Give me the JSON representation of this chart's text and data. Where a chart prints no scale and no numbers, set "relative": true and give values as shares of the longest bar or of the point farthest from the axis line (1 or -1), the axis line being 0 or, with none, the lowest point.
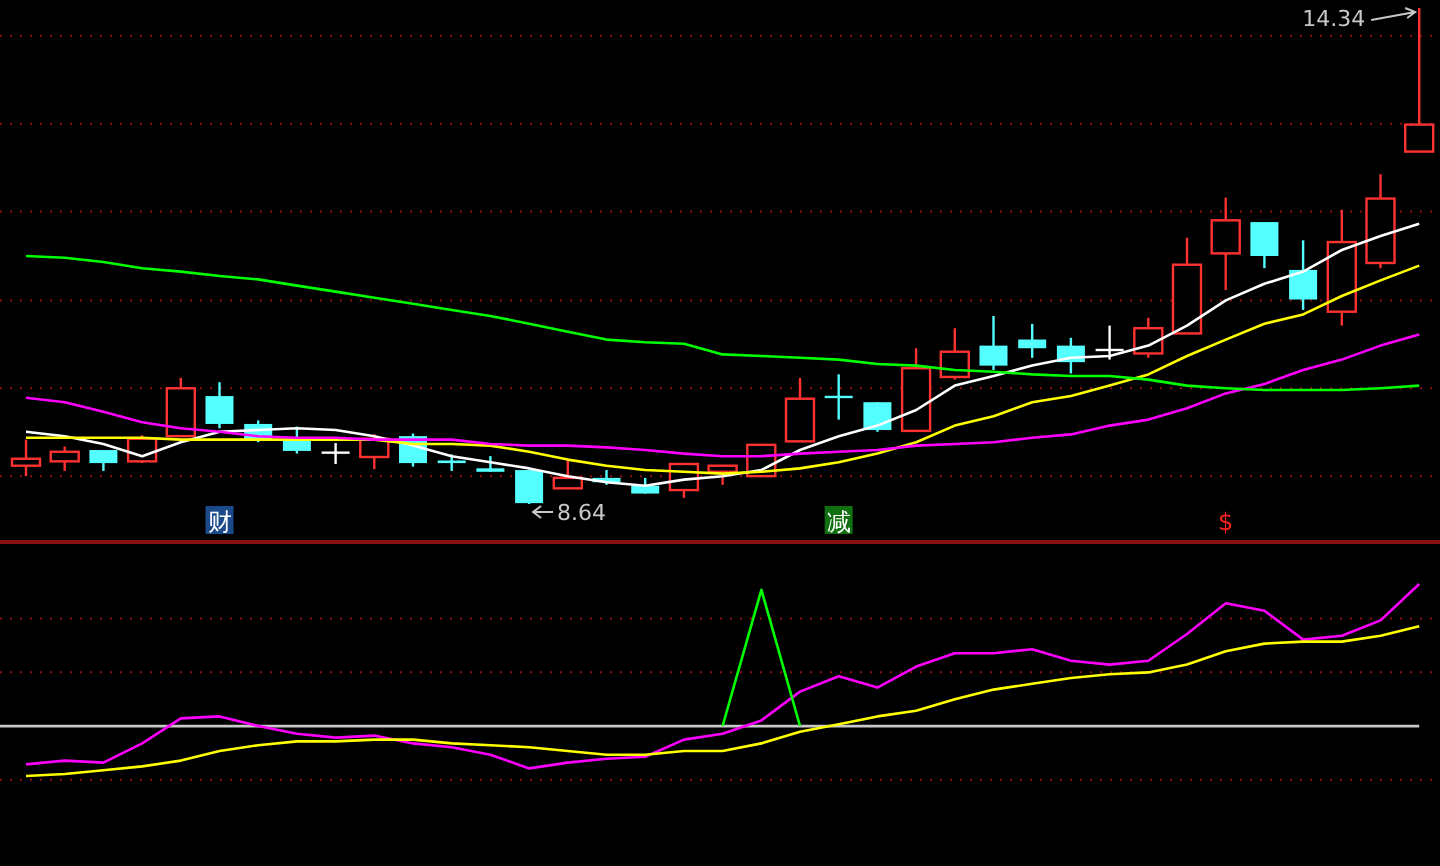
{
  "chart_data": [
    {
      "type": "candlestick",
      "ref_lines": [
        {
          "axis": "y",
          "value": 14.02,
          "color": "#8b1010",
          "line_style": "dotted"
        },
        {
          "axis": "y",
          "value": 13.01,
          "color": "#8b1010",
          "line_style": "dotted"
        },
        {
          "axis": "y",
          "value": 12.0,
          "color": "#8b1010",
          "line_style": "dotted"
        },
        {
          "axis": "y",
          "value": 10.98,
          "color": "#8b1010",
          "line_style": "dotted"
        },
        {
          "axis": "y",
          "value": 9.97,
          "color": "#8b1010",
          "line_style": "dotted"
        },
        {
          "axis": "y",
          "value": 8.96,
          "color": "#8b1010",
          "line_style": "dotted"
        }
      ],
      "categories": [
        null,
        null,
        null,
        null,
        null,
        null,
        null,
        null,
        null,
        null,
        null,
        null,
        null,
        null,
        null,
        null,
        null,
        null,
        null,
        null,
        null,
        null,
        null,
        null,
        null,
        null,
        null,
        null,
        null,
        null,
        null,
        null,
        null,
        null,
        null,
        null,
        null
      ],
      "ohlc": [
        [
          9.08,
          9.38,
          8.96,
          9.16
        ],
        [
          9.13,
          9.3,
          9.02,
          9.24
        ],
        [
          9.26,
          9.26,
          9.02,
          9.11
        ],
        [
          9.13,
          9.43,
          9.11,
          9.39
        ],
        [
          9.42,
          10.09,
          9.42,
          9.97
        ],
        [
          9.88,
          10.04,
          9.51,
          9.56
        ],
        [
          9.56,
          9.6,
          9.35,
          9.38
        ],
        [
          9.39,
          9.53,
          9.22,
          9.25
        ],
        [
          9.23,
          9.34,
          9.1,
          9.23
        ],
        [
          9.18,
          9.44,
          9.04,
          9.39
        ],
        [
          9.42,
          9.45,
          9.07,
          9.11
        ],
        [
          9.14,
          9.21,
          9.02,
          9.11
        ],
        [
          9.05,
          9.19,
          9.01,
          9.01
        ],
        [
          9.03,
          9.03,
          8.64,
          8.65
        ],
        [
          8.82,
          9.16,
          8.82,
          8.94
        ],
        [
          8.94,
          9.03,
          8.86,
          8.89
        ],
        [
          8.85,
          8.94,
          8.76,
          8.76
        ],
        [
          8.8,
          9.1,
          8.71,
          9.1
        ],
        [
          9.01,
          9.08,
          8.86,
          9.08
        ],
        [
          8.96,
          9.32,
          8.96,
          9.32
        ],
        [
          9.36,
          10.09,
          9.36,
          9.85
        ],
        [
          9.87,
          10.13,
          9.61,
          9.85
        ],
        [
          9.81,
          9.81,
          9.47,
          9.49
        ],
        [
          9.48,
          10.43,
          9.48,
          10.2
        ],
        [
          10.1,
          10.66,
          10.07,
          10.39
        ],
        [
          10.46,
          10.8,
          10.18,
          10.23
        ],
        [
          10.53,
          10.71,
          10.32,
          10.43
        ],
        [
          10.46,
          10.55,
          10.14,
          10.27
        ],
        [
          10.41,
          10.69,
          10.3,
          10.41
        ],
        [
          10.37,
          10.78,
          10.32,
          10.66
        ],
        [
          10.6,
          11.7,
          10.6,
          11.39
        ],
        [
          11.52,
          12.16,
          11.1,
          11.9
        ],
        [
          11.88,
          11.88,
          11.35,
          11.49
        ],
        [
          11.33,
          11.67,
          10.87,
          10.99
        ],
        [
          10.85,
          12.02,
          10.69,
          11.65
        ],
        [
          11.41,
          12.43,
          11.35,
          12.15
        ],
        [
          12.69,
          14.34,
          12.69,
          13.0
        ]
      ],
      "series": [
        {
          "type": "line",
          "color": "#ffffff",
          "values": [
            9.47,
            9.42,
            9.33,
            9.19,
            9.35,
            9.47,
            9.49,
            9.51,
            9.49,
            9.42,
            9.31,
            9.19,
            9.12,
            9.05,
            8.96,
            8.89,
            8.85,
            8.92,
            8.96,
            9.03,
            9.26,
            9.42,
            9.54,
            9.72,
            10.0,
            10.11,
            10.23,
            10.32,
            10.34,
            10.46,
            10.69,
            10.98,
            11.17,
            11.31,
            11.56,
            11.72,
            11.86
          ]
        },
        {
          "type": "line",
          "color": "#ffff00",
          "values": [
            9.4,
            9.4,
            9.4,
            9.4,
            9.38,
            9.38,
            9.38,
            9.38,
            9.38,
            9.38,
            9.33,
            9.33,
            9.31,
            9.24,
            9.15,
            9.08,
            9.03,
            9.01,
            8.99,
            9.01,
            9.05,
            9.12,
            9.22,
            9.35,
            9.54,
            9.65,
            9.81,
            9.88,
            10.0,
            10.13,
            10.34,
            10.53,
            10.71,
            10.82,
            11.03,
            11.21,
            11.38
          ]
        },
        {
          "type": "line",
          "color": "#ff00ff",
          "values": [
            9.86,
            9.81,
            9.7,
            9.58,
            9.51,
            9.47,
            9.42,
            9.4,
            9.4,
            9.38,
            9.38,
            9.38,
            9.33,
            9.31,
            9.31,
            9.29,
            9.26,
            9.22,
            9.19,
            9.19,
            9.22,
            9.24,
            9.26,
            9.31,
            9.33,
            9.35,
            9.4,
            9.44,
            9.54,
            9.61,
            9.74,
            9.91,
            10.02,
            10.18,
            10.3,
            10.46,
            10.59
          ]
        },
        {
          "type": "line",
          "color": "#00ff00",
          "values": [
            11.49,
            11.47,
            11.42,
            11.35,
            11.31,
            11.26,
            11.22,
            11.15,
            11.08,
            11.01,
            10.94,
            10.87,
            10.8,
            10.71,
            10.62,
            10.53,
            10.5,
            10.48,
            10.36,
            10.34,
            10.32,
            10.3,
            10.25,
            10.23,
            10.18,
            10.16,
            10.13,
            10.11,
            10.11,
            10.07,
            10.0,
            9.97,
            9.95,
            9.95,
            9.95,
            9.97,
            10.0
          ]
        }
      ],
      "annotations": [
        "14.34",
        "8.64",
        "财",
        "减",
        "$"
      ]
    },
    {
      "type": "line",
      "relative": true,
      "categories": [
        null,
        null,
        null,
        null,
        null,
        null,
        null,
        null,
        null,
        null,
        null,
        null,
        null,
        null,
        null,
        null,
        null,
        null,
        null,
        null,
        null,
        null,
        null,
        null,
        null,
        null,
        null,
        null,
        null,
        null,
        null,
        null,
        null,
        null,
        null,
        null,
        null
      ],
      "series": [
        {
          "color": "#ff00ff",
          "values": [
            0.06,
            0.08,
            0.07,
            0.17,
            0.3,
            0.31,
            0.26,
            0.22,
            0.2,
            0.21,
            0.17,
            0.15,
            0.11,
            0.04,
            0.07,
            0.09,
            0.1,
            0.19,
            0.22,
            0.29,
            0.44,
            0.52,
            0.46,
            0.57,
            0.64,
            0.64,
            0.66,
            0.6,
            0.58,
            0.6,
            0.74,
            0.9,
            0.86,
            0.71,
            0.73,
            0.81,
            1
          ]
        },
        {
          "color": "#ffff00",
          "values": [
            0,
            0.01,
            0.03,
            0.05,
            0.08,
            0.13,
            0.16,
            0.18,
            0.18,
            0.19,
            0.19,
            0.17,
            0.16,
            0.15,
            0.13,
            0.11,
            0.11,
            0.13,
            0.13,
            0.17,
            0.23,
            0.27,
            0.31,
            0.34,
            0.4,
            0.45,
            0.48,
            0.51,
            0.53,
            0.54,
            0.58,
            0.65,
            0.69,
            0.7,
            0.7,
            0.73,
            0.78
          ]
        },
        {
          "color": "#00ff00",
          "values": [
            null,
            null,
            null,
            null,
            null,
            null,
            null,
            null,
            null,
            null,
            null,
            null,
            null,
            null,
            null,
            null,
            null,
            null,
            0.26,
            0.97,
            0.26,
            null,
            null,
            null,
            null,
            null,
            null,
            null,
            null,
            null,
            null,
            null,
            null,
            null,
            null,
            null,
            null
          ]
        }
      ],
      "ref_lines": [
        {
          "axis": "y",
          "value": 0.82,
          "color": "#8b1010",
          "line_style": "dotted"
        },
        {
          "axis": "y",
          "value": 0.54,
          "color": "#8b1010",
          "line_style": "dotted"
        },
        {
          "axis": "y",
          "value": 0.26,
          "color": "#c8c8c8",
          "line_style": "solid"
        },
        {
          "axis": "y",
          "value": -0.02,
          "color": "#8b1010",
          "line_style": "dotted"
        }
      ]
    }
  ]
}
